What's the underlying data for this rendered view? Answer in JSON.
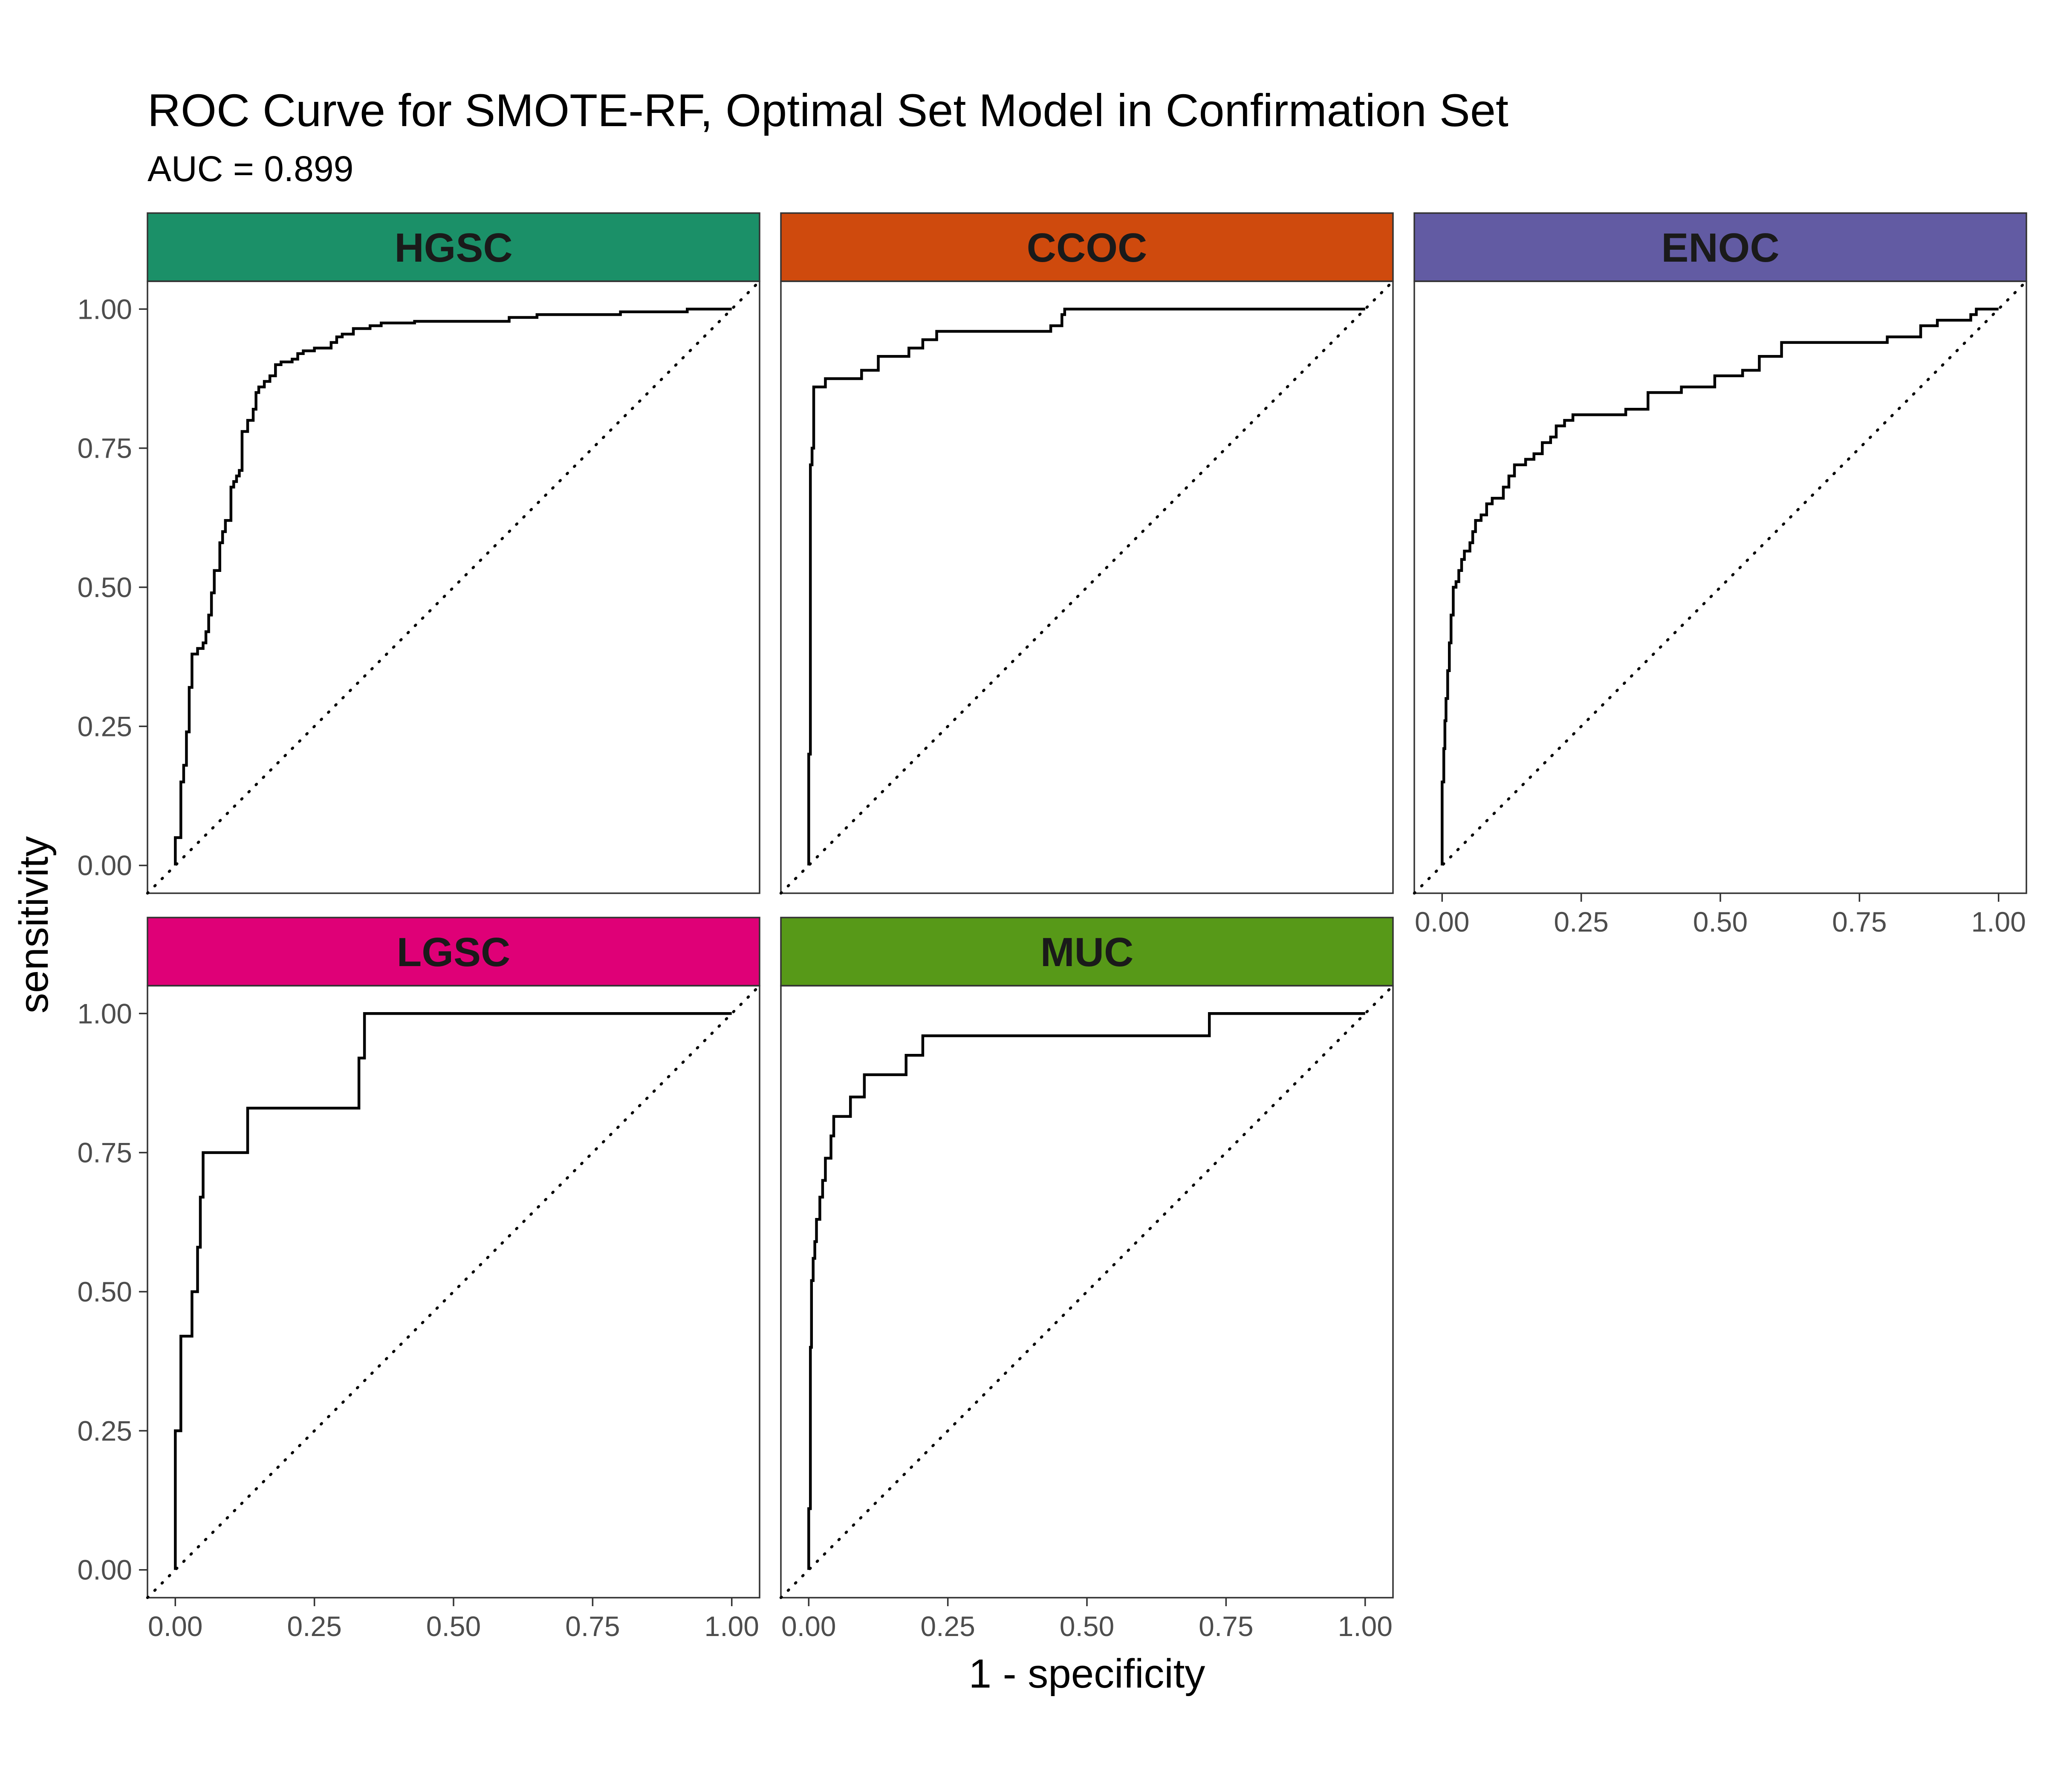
{
  "chart_data": {
    "type": "line",
    "title": "ROC Curve for SMOTE-RF, Optimal Set Model in Confirmation Set",
    "subtitle": "AUC = 0.899",
    "xlabel": "1 - specificity",
    "ylabel": "sensitivity",
    "xlim": [
      0,
      1
    ],
    "ylim": [
      0,
      1
    ],
    "x_ticks": [
      "0.00",
      "0.25",
      "0.50",
      "0.75",
      "1.00"
    ],
    "y_ticks": [
      "0.00",
      "0.25",
      "0.50",
      "0.75",
      "1.00"
    ],
    "grid": false,
    "reference_line": "diagonal",
    "panels": [
      {
        "name": "HGSC",
        "strip_color": "#1b9068",
        "points": [
          [
            0,
            0
          ],
          [
            0,
            0.05
          ],
          [
            0.01,
            0.05
          ],
          [
            0.01,
            0.15
          ],
          [
            0.015,
            0.15
          ],
          [
            0.015,
            0.18
          ],
          [
            0.02,
            0.18
          ],
          [
            0.02,
            0.24
          ],
          [
            0.025,
            0.24
          ],
          [
            0.025,
            0.32
          ],
          [
            0.03,
            0.32
          ],
          [
            0.03,
            0.38
          ],
          [
            0.04,
            0.38
          ],
          [
            0.04,
            0.39
          ],
          [
            0.05,
            0.39
          ],
          [
            0.05,
            0.4
          ],
          [
            0.055,
            0.4
          ],
          [
            0.055,
            0.42
          ],
          [
            0.06,
            0.42
          ],
          [
            0.06,
            0.45
          ],
          [
            0.065,
            0.45
          ],
          [
            0.065,
            0.49
          ],
          [
            0.07,
            0.49
          ],
          [
            0.07,
            0.53
          ],
          [
            0.08,
            0.53
          ],
          [
            0.08,
            0.58
          ],
          [
            0.085,
            0.58
          ],
          [
            0.085,
            0.6
          ],
          [
            0.09,
            0.6
          ],
          [
            0.09,
            0.62
          ],
          [
            0.1,
            0.62
          ],
          [
            0.1,
            0.68
          ],
          [
            0.105,
            0.68
          ],
          [
            0.105,
            0.69
          ],
          [
            0.11,
            0.69
          ],
          [
            0.11,
            0.7
          ],
          [
            0.115,
            0.7
          ],
          [
            0.115,
            0.71
          ],
          [
            0.12,
            0.71
          ],
          [
            0.12,
            0.78
          ],
          [
            0.13,
            0.78
          ],
          [
            0.13,
            0.8
          ],
          [
            0.14,
            0.8
          ],
          [
            0.14,
            0.82
          ],
          [
            0.145,
            0.82
          ],
          [
            0.145,
            0.85
          ],
          [
            0.15,
            0.85
          ],
          [
            0.15,
            0.86
          ],
          [
            0.16,
            0.86
          ],
          [
            0.16,
            0.87
          ],
          [
            0.17,
            0.87
          ],
          [
            0.17,
            0.88
          ],
          [
            0.18,
            0.88
          ],
          [
            0.18,
            0.9
          ],
          [
            0.19,
            0.9
          ],
          [
            0.19,
            0.905
          ],
          [
            0.21,
            0.905
          ],
          [
            0.21,
            0.91
          ],
          [
            0.22,
            0.91
          ],
          [
            0.22,
            0.92
          ],
          [
            0.23,
            0.92
          ],
          [
            0.23,
            0.925
          ],
          [
            0.25,
            0.925
          ],
          [
            0.25,
            0.93
          ],
          [
            0.28,
            0.93
          ],
          [
            0.28,
            0.94
          ],
          [
            0.29,
            0.94
          ],
          [
            0.29,
            0.95
          ],
          [
            0.3,
            0.95
          ],
          [
            0.3,
            0.955
          ],
          [
            0.32,
            0.955
          ],
          [
            0.32,
            0.965
          ],
          [
            0.35,
            0.965
          ],
          [
            0.35,
            0.97
          ],
          [
            0.37,
            0.97
          ],
          [
            0.37,
            0.975
          ],
          [
            0.43,
            0.975
          ],
          [
            0.43,
            0.978
          ],
          [
            0.6,
            0.978
          ],
          [
            0.6,
            0.985
          ],
          [
            0.65,
            0.985
          ],
          [
            0.65,
            0.99
          ],
          [
            0.8,
            0.99
          ],
          [
            0.8,
            0.995
          ],
          [
            0.92,
            0.995
          ],
          [
            0.92,
            1
          ],
          [
            1,
            1
          ]
        ]
      },
      {
        "name": "CCOC",
        "strip_color": "#cf4a0d",
        "points": [
          [
            0,
            0
          ],
          [
            0,
            0.2
          ],
          [
            0.003,
            0.2
          ],
          [
            0.003,
            0.72
          ],
          [
            0.006,
            0.72
          ],
          [
            0.006,
            0.75
          ],
          [
            0.009,
            0.75
          ],
          [
            0.009,
            0.86
          ],
          [
            0.03,
            0.86
          ],
          [
            0.03,
            0.875
          ],
          [
            0.095,
            0.875
          ],
          [
            0.095,
            0.89
          ],
          [
            0.125,
            0.89
          ],
          [
            0.125,
            0.915
          ],
          [
            0.18,
            0.915
          ],
          [
            0.18,
            0.93
          ],
          [
            0.205,
            0.93
          ],
          [
            0.205,
            0.945
          ],
          [
            0.23,
            0.945
          ],
          [
            0.23,
            0.96
          ],
          [
            0.435,
            0.96
          ],
          [
            0.435,
            0.97
          ],
          [
            0.455,
            0.97
          ],
          [
            0.455,
            0.99
          ],
          [
            0.46,
            0.99
          ],
          [
            0.46,
            1
          ],
          [
            1,
            1
          ]
        ]
      },
      {
        "name": "ENOC",
        "strip_color": "#625ba3",
        "points": [
          [
            0,
            0
          ],
          [
            0,
            0.15
          ],
          [
            0.003,
            0.15
          ],
          [
            0.003,
            0.21
          ],
          [
            0.005,
            0.21
          ],
          [
            0.005,
            0.26
          ],
          [
            0.007,
            0.26
          ],
          [
            0.007,
            0.3
          ],
          [
            0.01,
            0.3
          ],
          [
            0.01,
            0.35
          ],
          [
            0.013,
            0.35
          ],
          [
            0.013,
            0.4
          ],
          [
            0.016,
            0.4
          ],
          [
            0.016,
            0.45
          ],
          [
            0.02,
            0.45
          ],
          [
            0.02,
            0.5
          ],
          [
            0.025,
            0.5
          ],
          [
            0.025,
            0.51
          ],
          [
            0.03,
            0.51
          ],
          [
            0.03,
            0.53
          ],
          [
            0.035,
            0.53
          ],
          [
            0.035,
            0.55
          ],
          [
            0.04,
            0.55
          ],
          [
            0.04,
            0.565
          ],
          [
            0.05,
            0.565
          ],
          [
            0.05,
            0.58
          ],
          [
            0.055,
            0.58
          ],
          [
            0.055,
            0.6
          ],
          [
            0.06,
            0.6
          ],
          [
            0.06,
            0.62
          ],
          [
            0.07,
            0.62
          ],
          [
            0.07,
            0.63
          ],
          [
            0.08,
            0.63
          ],
          [
            0.08,
            0.65
          ],
          [
            0.09,
            0.65
          ],
          [
            0.09,
            0.66
          ],
          [
            0.11,
            0.66
          ],
          [
            0.11,
            0.68
          ],
          [
            0.12,
            0.68
          ],
          [
            0.12,
            0.7
          ],
          [
            0.13,
            0.7
          ],
          [
            0.13,
            0.72
          ],
          [
            0.15,
            0.72
          ],
          [
            0.15,
            0.73
          ],
          [
            0.165,
            0.73
          ],
          [
            0.165,
            0.74
          ],
          [
            0.18,
            0.74
          ],
          [
            0.18,
            0.76
          ],
          [
            0.195,
            0.76
          ],
          [
            0.195,
            0.77
          ],
          [
            0.205,
            0.77
          ],
          [
            0.205,
            0.79
          ],
          [
            0.22,
            0.79
          ],
          [
            0.22,
            0.8
          ],
          [
            0.235,
            0.8
          ],
          [
            0.235,
            0.81
          ],
          [
            0.33,
            0.81
          ],
          [
            0.33,
            0.82
          ],
          [
            0.37,
            0.82
          ],
          [
            0.37,
            0.85
          ],
          [
            0.43,
            0.85
          ],
          [
            0.43,
            0.86
          ],
          [
            0.49,
            0.86
          ],
          [
            0.49,
            0.88
          ],
          [
            0.54,
            0.88
          ],
          [
            0.54,
            0.89
          ],
          [
            0.57,
            0.89
          ],
          [
            0.57,
            0.915
          ],
          [
            0.61,
            0.915
          ],
          [
            0.61,
            0.94
          ],
          [
            0.8,
            0.94
          ],
          [
            0.8,
            0.95
          ],
          [
            0.86,
            0.95
          ],
          [
            0.86,
            0.97
          ],
          [
            0.89,
            0.97
          ],
          [
            0.89,
            0.98
          ],
          [
            0.95,
            0.98
          ],
          [
            0.95,
            0.99
          ],
          [
            0.96,
            0.99
          ],
          [
            0.96,
            1
          ],
          [
            1,
            1
          ]
        ]
      },
      {
        "name": "LGSC",
        "strip_color": "#df0077",
        "points": [
          [
            0,
            0
          ],
          [
            0,
            0.25
          ],
          [
            0.01,
            0.25
          ],
          [
            0.01,
            0.42
          ],
          [
            0.03,
            0.42
          ],
          [
            0.03,
            0.5
          ],
          [
            0.04,
            0.5
          ],
          [
            0.04,
            0.58
          ],
          [
            0.045,
            0.58
          ],
          [
            0.045,
            0.67
          ],
          [
            0.05,
            0.67
          ],
          [
            0.05,
            0.75
          ],
          [
            0.13,
            0.75
          ],
          [
            0.13,
            0.83
          ],
          [
            0.33,
            0.83
          ],
          [
            0.33,
            0.92
          ],
          [
            0.34,
            0.92
          ],
          [
            0.34,
            1
          ],
          [
            1,
            1
          ]
        ]
      },
      {
        "name": "MUC",
        "strip_color": "#579918",
        "points": [
          [
            0,
            0
          ],
          [
            0,
            0.11
          ],
          [
            0.003,
            0.11
          ],
          [
            0.003,
            0.4
          ],
          [
            0.005,
            0.4
          ],
          [
            0.005,
            0.52
          ],
          [
            0.008,
            0.52
          ],
          [
            0.008,
            0.56
          ],
          [
            0.011,
            0.56
          ],
          [
            0.011,
            0.59
          ],
          [
            0.014,
            0.59
          ],
          [
            0.014,
            0.63
          ],
          [
            0.02,
            0.63
          ],
          [
            0.02,
            0.67
          ],
          [
            0.025,
            0.67
          ],
          [
            0.025,
            0.7
          ],
          [
            0.03,
            0.7
          ],
          [
            0.03,
            0.74
          ],
          [
            0.04,
            0.74
          ],
          [
            0.04,
            0.78
          ],
          [
            0.045,
            0.78
          ],
          [
            0.045,
            0.815
          ],
          [
            0.075,
            0.815
          ],
          [
            0.075,
            0.85
          ],
          [
            0.1,
            0.85
          ],
          [
            0.1,
            0.89
          ],
          [
            0.175,
            0.89
          ],
          [
            0.175,
            0.925
          ],
          [
            0.205,
            0.925
          ],
          [
            0.205,
            0.96
          ],
          [
            0.72,
            0.96
          ],
          [
            0.72,
            1
          ],
          [
            1,
            1
          ]
        ]
      }
    ]
  }
}
